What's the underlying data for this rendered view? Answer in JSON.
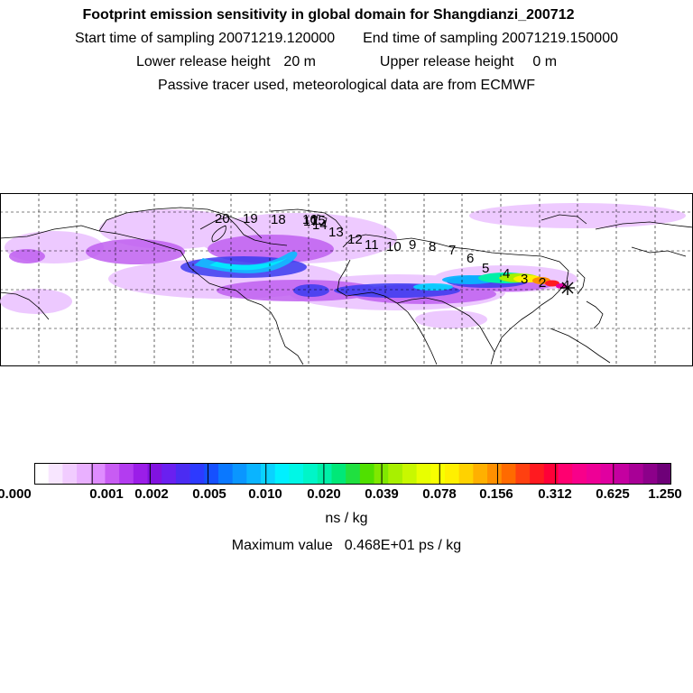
{
  "header": {
    "title": "Footprint emission sensitivity in global domain for Shangdianzi_200712",
    "start_label": "Start time of sampling",
    "start_value": "20071219.120000",
    "end_label": "End time of sampling",
    "end_value": "20071219.150000",
    "lower_label": "Lower release height",
    "lower_value": "20 m",
    "upper_label": "Upper release height",
    "upper_value": "0 m",
    "note": "Passive tracer used, meteorological data are from ECMWF"
  },
  "map": {
    "receptor": "Shangdianzi",
    "receptor_marker": "star-icon",
    "waypoints": [
      "2",
      "3",
      "4",
      "5",
      "6",
      "7",
      "8",
      "9",
      "10",
      "11",
      "12",
      "13",
      "14",
      "15",
      "16",
      "17",
      "18",
      "19",
      "20"
    ]
  },
  "colorbar": {
    "ticks": [
      "0.000",
      "0.001",
      "0.002",
      "0.005",
      "0.010",
      "0.020",
      "0.039",
      "0.078",
      "0.156",
      "0.312",
      "0.625",
      "1.250"
    ],
    "colors": [
      "#ffffff",
      "#f8e6ff",
      "#f1ccff",
      "#e9b0ff",
      "#df8cff",
      "#c85cf3",
      "#b33cf0",
      "#9b1ee8",
      "#8112e0",
      "#6a20f0",
      "#4b2cf2",
      "#2d3aff",
      "#1550ff",
      "#0a78ff",
      "#0a96ff",
      "#0ab4ff",
      "#0ad2ff",
      "#00f0ff",
      "#00f7e6",
      "#00f5c8",
      "#00f0a8",
      "#00e878",
      "#20e040",
      "#50e000",
      "#80e800",
      "#a8f000",
      "#c8f800",
      "#e8ff00",
      "#f8ff00",
      "#fff000",
      "#ffd200",
      "#ffb000",
      "#ff9000",
      "#ff6a00",
      "#ff4010",
      "#ff1a20",
      "#ff0038",
      "#ff0070",
      "#f8008a",
      "#ee0096",
      "#e000a0",
      "#c400a0",
      "#a80096",
      "#8c008a",
      "#6e0078"
    ],
    "unit": "ns / kg"
  },
  "max_value": {
    "label": "Maximum value",
    "value": "0.468E+01",
    "unit": "ps / kg"
  }
}
